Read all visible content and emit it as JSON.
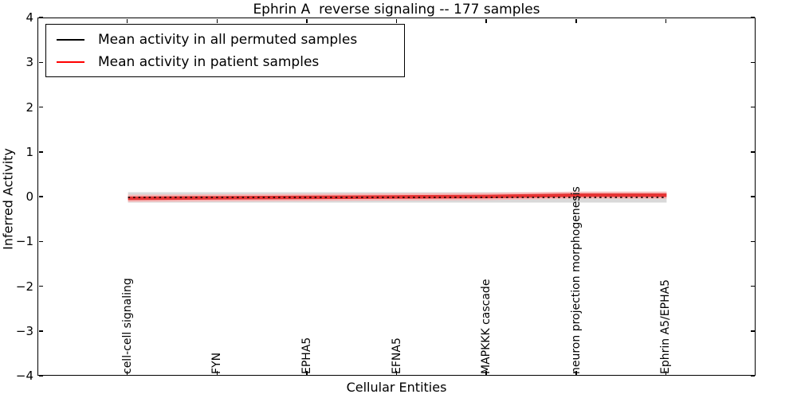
{
  "title": "Ephrin A  reverse signaling -- 177 samples",
  "axes": {
    "x_label": "Cellular Entities",
    "y_label": "Inferred Activity",
    "y_ticks": [
      "4",
      "3",
      "2",
      "1",
      "0",
      "−1",
      "−2",
      "−3",
      "−4"
    ]
  },
  "legend": {
    "items": [
      {
        "label": "Mean activity in all permuted samples",
        "color": "#000000"
      },
      {
        "label": "Mean activity in patient samples",
        "color": "#ff0000"
      }
    ]
  },
  "chart_data": {
    "type": "line",
    "title": "Ephrin A  reverse signaling -- 177 samples",
    "xlabel": "Cellular Entities",
    "ylabel": "Inferred Activity",
    "ylim": [
      -4,
      4
    ],
    "grid": false,
    "legend_position": "upper left",
    "categories": [
      "cell-cell signaling",
      "FYN",
      "EPHA5",
      "EFNA5",
      "MAPKKK cascade",
      "neuron projection morphogenesis",
      "Ephrin A5/EPHA5"
    ],
    "series": [
      {
        "name": "Mean activity in all permuted samples",
        "color": "#000000",
        "line_style": "dashed",
        "values": [
          0,
          0,
          0,
          0,
          0,
          0,
          0
        ]
      },
      {
        "name": "Mean activity in patient samples",
        "color": "#ff0000",
        "line_style": "solid",
        "values": [
          -0.02,
          -0.01,
          0,
          0.01,
          0.02,
          0.05,
          0.05
        ]
      }
    ],
    "band_layers": [
      {
        "series": 0,
        "color": "#d9d9d9",
        "width": 13
      },
      {
        "series": 1,
        "color": "#f5b8b8",
        "width": 9
      },
      {
        "series": 1,
        "color": "#e63434",
        "width": 4.5
      },
      {
        "series": 0,
        "color": "#000000",
        "width": 1.6,
        "dash": "2.5 4"
      }
    ]
  }
}
